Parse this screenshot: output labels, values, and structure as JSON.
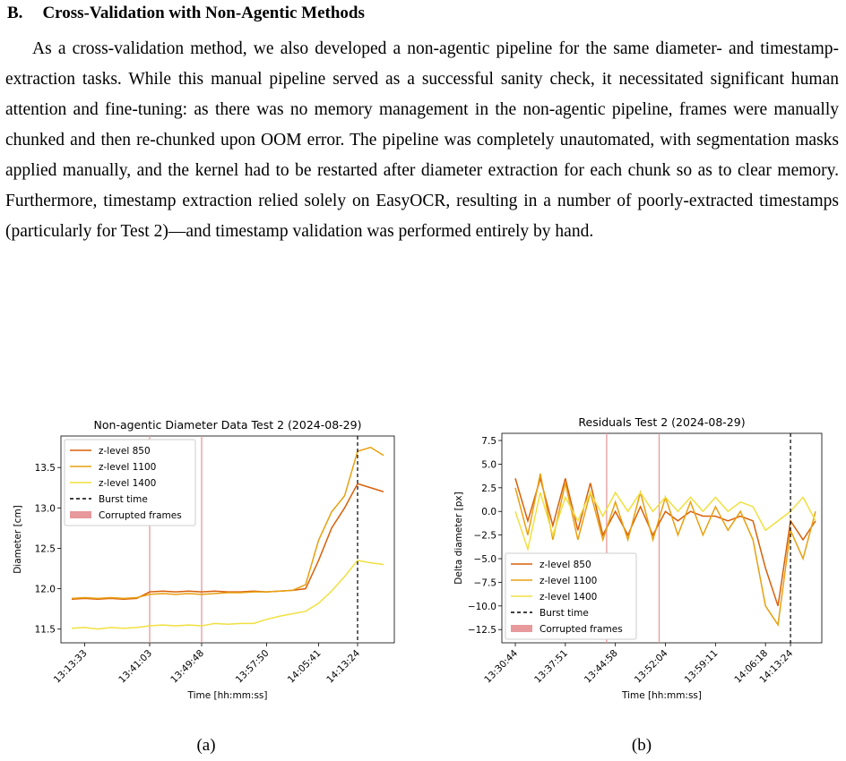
{
  "section": {
    "number": "B.",
    "title": "Cross-Validation with Non-Agentic Methods"
  },
  "paragraph": "As a cross-validation method, we also developed a non-agentic pipeline for the same diameter- and timestamp-extraction tasks. While this manual pipeline served as a successful sanity check, it necessitated significant human attention and fine-tuning: as there was no memory management in the non-agentic pipeline, frames were manually chunked and then re-chunked upon OOM error. The pipeline was completely unautomated, with segmentation masks applied manually, and the kernel had to be restarted after diameter extraction for each chunk so as to clear memory.  Furthermore, timestamp extraction relied solely on EasyOCR, resulting in a number of poorly-extracted timestamps (particularly for Test 2)—and timestamp validation was performed entirely by hand.",
  "chart_data": [
    {
      "type": "line",
      "title": "Non-agentic Diameter Data Test 2 (2024-08-29)",
      "caption": "(a)",
      "x_label": "Time [hh:mm:ss]",
      "y_label": "Diameter [cm]",
      "categories": [
        null,
        "13:13:33",
        null,
        null,
        null,
        null,
        "13:41:03",
        null,
        null,
        null,
        "13:49:48",
        null,
        null,
        null,
        null,
        "13:57:50",
        null,
        null,
        null,
        "14:05:41",
        null,
        null,
        "14:13:24",
        null,
        null
      ],
      "series": [
        {
          "name": "z-level 850",
          "color": "#d9600a",
          "values": [
            11.87,
            11.88,
            11.87,
            11.88,
            11.87,
            11.88,
            11.96,
            11.97,
            11.96,
            11.97,
            11.96,
            11.97,
            11.96,
            11.96,
            11.97,
            11.96,
            11.97,
            11.98,
            12.0,
            12.35,
            12.75,
            13.0,
            13.3,
            13.25,
            13.2
          ]
        },
        {
          "name": "z-level 1100",
          "color": "#e8a010",
          "values": [
            11.88,
            11.89,
            11.88,
            11.89,
            11.88,
            11.89,
            11.93,
            11.94,
            11.93,
            11.94,
            11.93,
            11.94,
            11.95,
            11.95,
            11.96,
            11.96,
            11.97,
            11.98,
            12.05,
            12.6,
            12.95,
            13.15,
            13.7,
            13.75,
            13.65
          ]
        },
        {
          "name": "z-level 1400",
          "color": "#f0e040",
          "values": [
            11.51,
            11.52,
            11.5,
            11.52,
            11.51,
            11.52,
            11.54,
            11.55,
            11.54,
            11.55,
            11.54,
            11.57,
            11.56,
            11.57,
            11.57,
            11.62,
            11.66,
            11.69,
            11.72,
            11.82,
            11.97,
            12.15,
            12.35,
            12.32,
            12.3
          ]
        }
      ],
      "burst": {
        "name": "Burst time",
        "at": 22,
        "color": "#000000"
      },
      "corrupted": {
        "name": "Corrupted frames",
        "at": [
          6,
          10
        ],
        "color": "#e8999b"
      },
      "ylim": [
        11.33,
        13.89
      ],
      "yticks": [
        11.5,
        {
          "value": 12,
          "label": "12.0"
        },
        12.5,
        {
          "value": 13,
          "label": "13.0"
        },
        13.5
      ],
      "legend": "upper left"
    },
    {
      "type": "line",
      "title": "Residuals Test 2 (2024-08-29)",
      "caption": "(b)",
      "x_label": "Time [hh:mm:ss]",
      "y_label": "Delta diameter [px]",
      "categories": [
        "13:30:44",
        null,
        null,
        null,
        "13:37:51",
        null,
        null,
        null,
        "13:44:58",
        null,
        null,
        null,
        "13:52:04",
        null,
        null,
        null,
        "13:59:11",
        null,
        null,
        null,
        "14:06:18",
        null,
        "14:13:24",
        null,
        null
      ],
      "series": [
        {
          "name": "z-level 850",
          "color": "#d9600a",
          "values": [
            3.5,
            -1,
            3.5,
            -1.5,
            3.5,
            -2,
            3,
            -2.5,
            0,
            -2.5,
            0.5,
            -2.5,
            0,
            -1,
            0,
            -0.5,
            -0.5,
            -1,
            -0.5,
            -1,
            -6,
            -10,
            -1,
            -3,
            -1
          ]
        },
        {
          "name": "z-level 1100",
          "color": "#e8a010",
          "values": [
            2.5,
            -2.5,
            4,
            -3,
            3,
            -3,
            2,
            -3,
            1,
            -3,
            2,
            -3,
            1.5,
            -2.5,
            1,
            -2.5,
            0.5,
            -2,
            0,
            -3,
            -10,
            -12,
            -2,
            -5,
            0
          ]
        },
        {
          "name": "z-level 1400",
          "color": "#f0e040",
          "values": [
            0,
            -4,
            2,
            -2.5,
            1.5,
            -1,
            2,
            -0.5,
            2,
            0,
            2,
            0,
            1.5,
            0,
            1.5,
            0,
            1.5,
            0,
            1,
            0.5,
            -2,
            -1,
            0,
            1.5,
            -1
          ]
        }
      ],
      "burst": {
        "name": "Burst time",
        "at": 22,
        "color": "#000000"
      },
      "corrupted": {
        "name": "Corrupted frames",
        "at": [
          7.3,
          11.5
        ],
        "color": "#e8999b"
      },
      "ylim": [
        -13.9,
        8.26
      ],
      "yticks": [
        {
          "value": -12.5,
          "label": "−12.5"
        },
        {
          "value": -10,
          "label": "−10.0"
        },
        {
          "value": -7.5,
          "label": "−7.5"
        },
        {
          "value": -5,
          "label": "−5.0"
        },
        {
          "value": -2.5,
          "label": "−2.5"
        },
        {
          "value": 0,
          "label": "0.0"
        },
        2.5,
        {
          "value": 5,
          "label": "5.0"
        },
        7.5
      ],
      "legend": "lower left"
    }
  ]
}
